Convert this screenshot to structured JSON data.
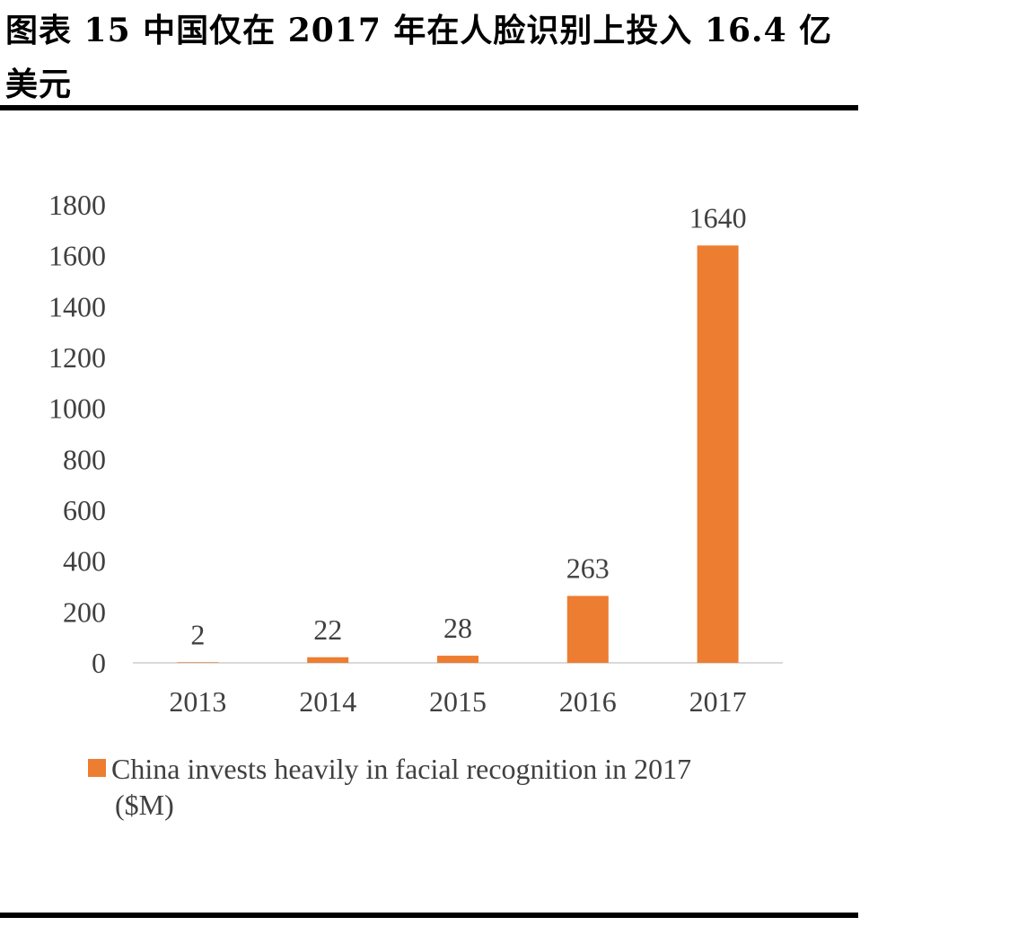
{
  "figure": {
    "title": "图表 15 中国仅在 2017 年在人脸识别上投入 16.4 亿美元"
  },
  "chart_data": {
    "type": "bar",
    "categories": [
      "2013",
      "2014",
      "2015",
      "2016",
      "2017"
    ],
    "series": [
      {
        "name": "China invests heavily in facial recognition in 2017 ($M)",
        "values": [
          2,
          22,
          28,
          263,
          1640
        ],
        "color": "#ED7D31"
      }
    ],
    "data_labels": [
      "2",
      "22",
      "28",
      "263",
      "1640"
    ],
    "ylim": [
      0,
      1800
    ],
    "yticks": [
      "0",
      "200",
      "400",
      "600",
      "800",
      "1000",
      "1200",
      "1400",
      "1600",
      "1800"
    ],
    "grid": false,
    "legend_position": "bottom",
    "legend": {
      "line1": "China invests heavily in facial recognition in 2017",
      "line2": "($M)"
    }
  }
}
